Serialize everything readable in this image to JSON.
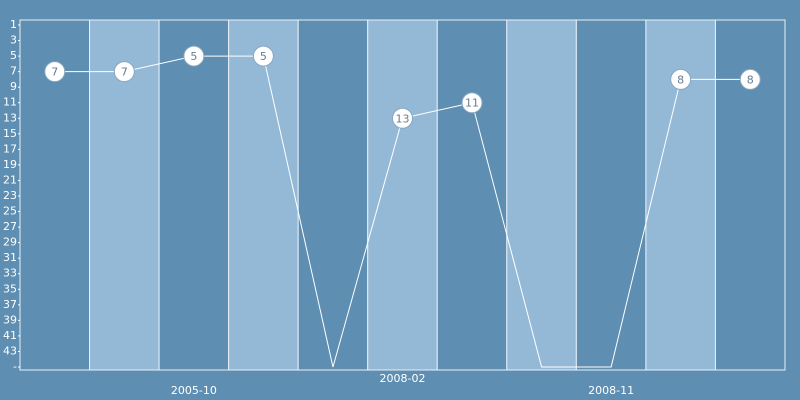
{
  "chart_data": {
    "type": "line",
    "categories": [
      null,
      null,
      "2005-10",
      null,
      null,
      "2008-02",
      null,
      null,
      "2008-11",
      null,
      null
    ],
    "values": [
      7,
      7,
      5,
      5,
      45,
      13,
      11,
      45,
      45,
      8,
      8
    ],
    "value_labels": [
      "7",
      "7",
      "5",
      "5",
      null,
      "13",
      "11",
      null,
      null,
      "8",
      "8"
    ],
    "ylim": [
      45,
      1
    ],
    "yticks": [
      1,
      3,
      5,
      7,
      9,
      11,
      13,
      15,
      17,
      19,
      21,
      23,
      25,
      27,
      29,
      31,
      33,
      35,
      37,
      39,
      41,
      43,
      {
        "value": 45,
        "label": "-"
      }
    ],
    "color": "#ffffff",
    "band_colors": [
      "#5e8eb1",
      "#94b9d7"
    ]
  }
}
